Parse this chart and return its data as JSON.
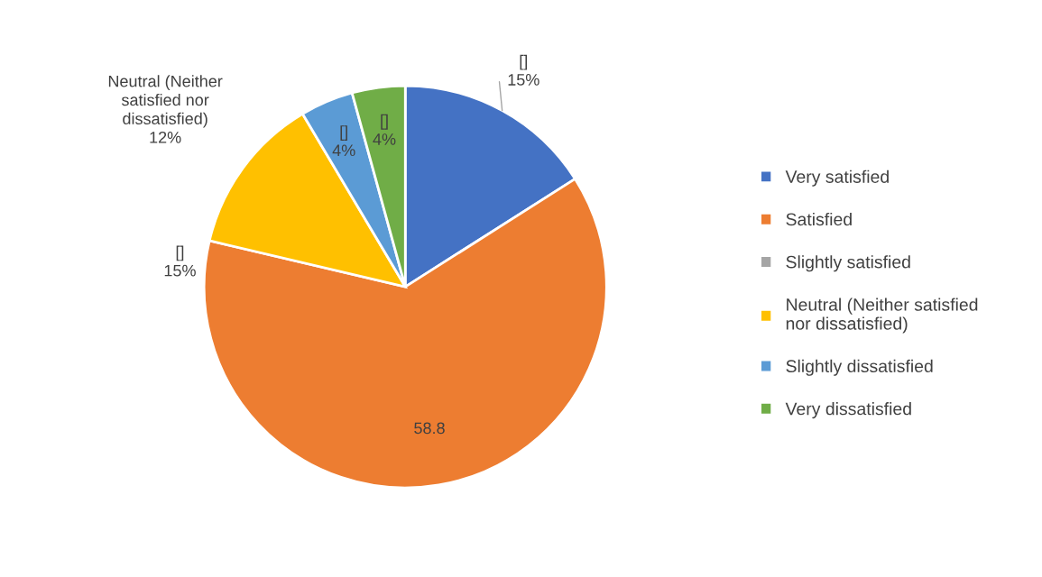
{
  "chart_data": {
    "type": "pie",
    "categories": [
      "Very satisfied",
      "Satisfied",
      "Slightly satisfied",
      "Neutral (Neither satisfied nor dissatisfied)",
      "Slightly dissatisfied",
      "Very dissatisfied"
    ],
    "values": [
      15,
      58.8,
      0,
      12,
      4,
      4
    ],
    "colors": [
      "#4472c4",
      "#ed7d31",
      "#a5a5a5",
      "#ffc000",
      "#5b9bd5",
      "#70ad47"
    ],
    "value_labels": [
      "[]\n15%",
      "58.8",
      null,
      "Neutral (Neither\nsatisfied nor\ndissatisfied)\n12%",
      "[]\n4%",
      "[]\n4%"
    ],
    "annotations": [
      "[]\n15%"
    ],
    "legend": "right"
  }
}
